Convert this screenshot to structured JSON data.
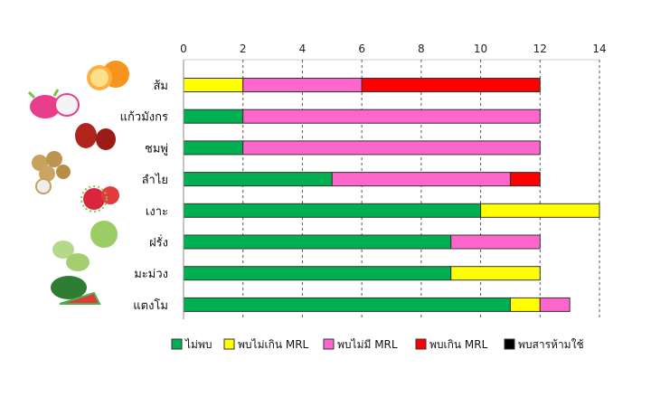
{
  "chart_data": {
    "type": "bar",
    "orientation": "horizontal",
    "stacked": true,
    "title": "",
    "xlabel": "",
    "ylabel": "",
    "xlim": [
      0,
      14
    ],
    "x_ticks": [
      0,
      2,
      4,
      6,
      8,
      10,
      12,
      14
    ],
    "x_axis_position": "top",
    "grid": "vertical dashed",
    "legend_position": "bottom",
    "categories": [
      "ส้ม",
      "แก้วมังกร",
      "ชมพู่",
      "ลำไย",
      "เงาะ",
      "ฝรั่ง",
      "มะม่วง",
      "แตงโม"
    ],
    "series": [
      {
        "name": "ไม่พบ",
        "color": "#00b050",
        "values": [
          0,
          2,
          2,
          5,
          10,
          9,
          9,
          11
        ]
      },
      {
        "name": "พบไม่เกิน MRL",
        "color": "#ffff00",
        "values": [
          2,
          0,
          0,
          0,
          4,
          0,
          3,
          1
        ]
      },
      {
        "name": "พบไม่มี MRL",
        "color": "#ff66cc",
        "values": [
          4,
          10,
          10,
          6,
          0,
          3,
          0,
          1
        ]
      },
      {
        "name": "พบเกิน MRL",
        "color": "#ff0000",
        "values": [
          6,
          0,
          0,
          1,
          0,
          0,
          0,
          0
        ]
      },
      {
        "name": "พบสารห้ามใช้",
        "color": "#000000",
        "values": [
          0,
          0,
          0,
          0,
          0,
          0,
          0,
          0
        ]
      }
    ]
  }
}
